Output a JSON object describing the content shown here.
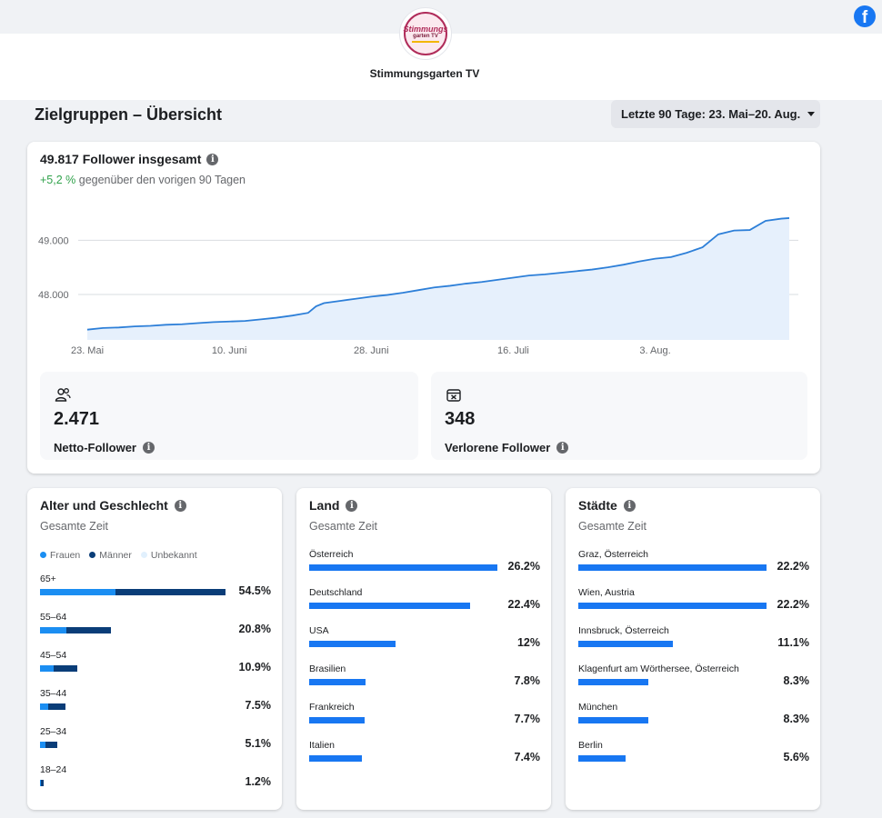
{
  "header": {
    "logo_text_line1": "Stimmungs",
    "logo_text_line2": "garten TV",
    "page_name": "Stimmungsgarten TV",
    "social_icon": "facebook-icon",
    "social_letter": "f"
  },
  "colors": {
    "accent": "#1877f2",
    "women": "#1b8ef2",
    "men": "#0a3d78",
    "unknown": "#e1f0fd",
    "positive": "#31a24c",
    "line": "#2d7fd8",
    "area": "#e6f0fc"
  },
  "overview": {
    "title": "Zielgruppen – Übersicht",
    "date_range": "Letzte 90 Tage: 23. Mai–20. Aug."
  },
  "followers": {
    "total_label": "49.817 Follower insgesamt",
    "growth_value": "+5,2 %",
    "growth_text": "gegenüber den vorigen 90 Tagen",
    "net_value": "2.471",
    "net_label": "Netto-Follower",
    "lost_value": "348",
    "lost_label": "Verlorene Follower"
  },
  "chart_data": {
    "type": "area",
    "title": "",
    "xlabel": "",
    "ylabel": "",
    "x_ticks": [
      "23. Mai",
      "10. Juni",
      "28. Juni",
      "16. Juli",
      "3. Aug."
    ],
    "y_ticks": [
      "48.000",
      "49.000"
    ],
    "y_tick_values": [
      48000,
      49000
    ],
    "ylim": [
      47160,
      49980
    ],
    "x_day_range": [
      0,
      89
    ],
    "x_tick_days": [
      0,
      18,
      36,
      54,
      72
    ],
    "grid": "horizontal",
    "x": [
      0,
      2,
      4,
      6,
      8,
      10,
      12,
      14,
      16,
      18,
      20,
      22,
      24,
      26,
      28,
      29,
      30,
      32,
      34,
      36,
      38,
      40,
      42,
      44,
      46,
      48,
      50,
      52,
      54,
      56,
      58,
      60,
      62,
      64,
      66,
      68,
      70,
      72,
      74,
      76,
      78,
      80,
      82,
      84,
      86,
      88,
      89
    ],
    "y": [
      47350,
      47380,
      47390,
      47410,
      47420,
      47440,
      47450,
      47470,
      47490,
      47500,
      47510,
      47540,
      47570,
      47610,
      47660,
      47780,
      47840,
      47880,
      47920,
      47960,
      47990,
      48030,
      48080,
      48130,
      48160,
      48200,
      48230,
      48270,
      48310,
      48350,
      48370,
      48400,
      48430,
      48460,
      48500,
      48550,
      48610,
      48660,
      48690,
      48770,
      48870,
      49110,
      49180,
      49190,
      49360,
      49400,
      49410
    ]
  },
  "age_gender": {
    "title": "Alter und Geschlecht",
    "subtitle": "Gesamte Zeit",
    "legend": [
      "Frauen",
      "Männer",
      "Unbekannt"
    ],
    "rows": [
      {
        "label": "65+",
        "women": 22.3,
        "men": 32.2,
        "total": "54.5%"
      },
      {
        "label": "55–64",
        "women": 7.8,
        "men": 13.0,
        "total": "20.8%"
      },
      {
        "label": "45–54",
        "women": 4.0,
        "men": 6.9,
        "total": "10.9%"
      },
      {
        "label": "35–44",
        "women": 2.3,
        "men": 5.2,
        "total": "7.5%"
      },
      {
        "label": "25–34",
        "women": 1.5,
        "men": 3.6,
        "total": "5.1%"
      },
      {
        "label": "18–24",
        "women": 0.4,
        "men": 0.8,
        "total": "1.2%"
      }
    ]
  },
  "countries": {
    "title": "Land",
    "subtitle": "Gesamte Zeit",
    "rows": [
      {
        "label": "Österreich",
        "value": 26.2,
        "display": "26.2%"
      },
      {
        "label": "Deutschland",
        "value": 22.4,
        "display": "22.4%"
      },
      {
        "label": "USA",
        "value": 12,
        "display": "12%"
      },
      {
        "label": "Brasilien",
        "value": 7.8,
        "display": "7.8%"
      },
      {
        "label": "Frankreich",
        "value": 7.7,
        "display": "7.7%"
      },
      {
        "label": "Italien",
        "value": 7.4,
        "display": "7.4%"
      }
    ]
  },
  "cities": {
    "title": "Städte",
    "subtitle": "Gesamte Zeit",
    "rows": [
      {
        "label": "Graz, Österreich",
        "value": 22.2,
        "display": "22.2%"
      },
      {
        "label": "Wien, Austria",
        "value": 22.2,
        "display": "22.2%"
      },
      {
        "label": "Innsbruck, Österreich",
        "value": 11.1,
        "display": "11.1%"
      },
      {
        "label": "Klagenfurt am Wörthersee, Österreich",
        "value": 8.3,
        "display": "8.3%"
      },
      {
        "label": "München",
        "value": 8.3,
        "display": "8.3%"
      },
      {
        "label": "Berlin",
        "value": 5.6,
        "display": "5.6%"
      }
    ]
  }
}
